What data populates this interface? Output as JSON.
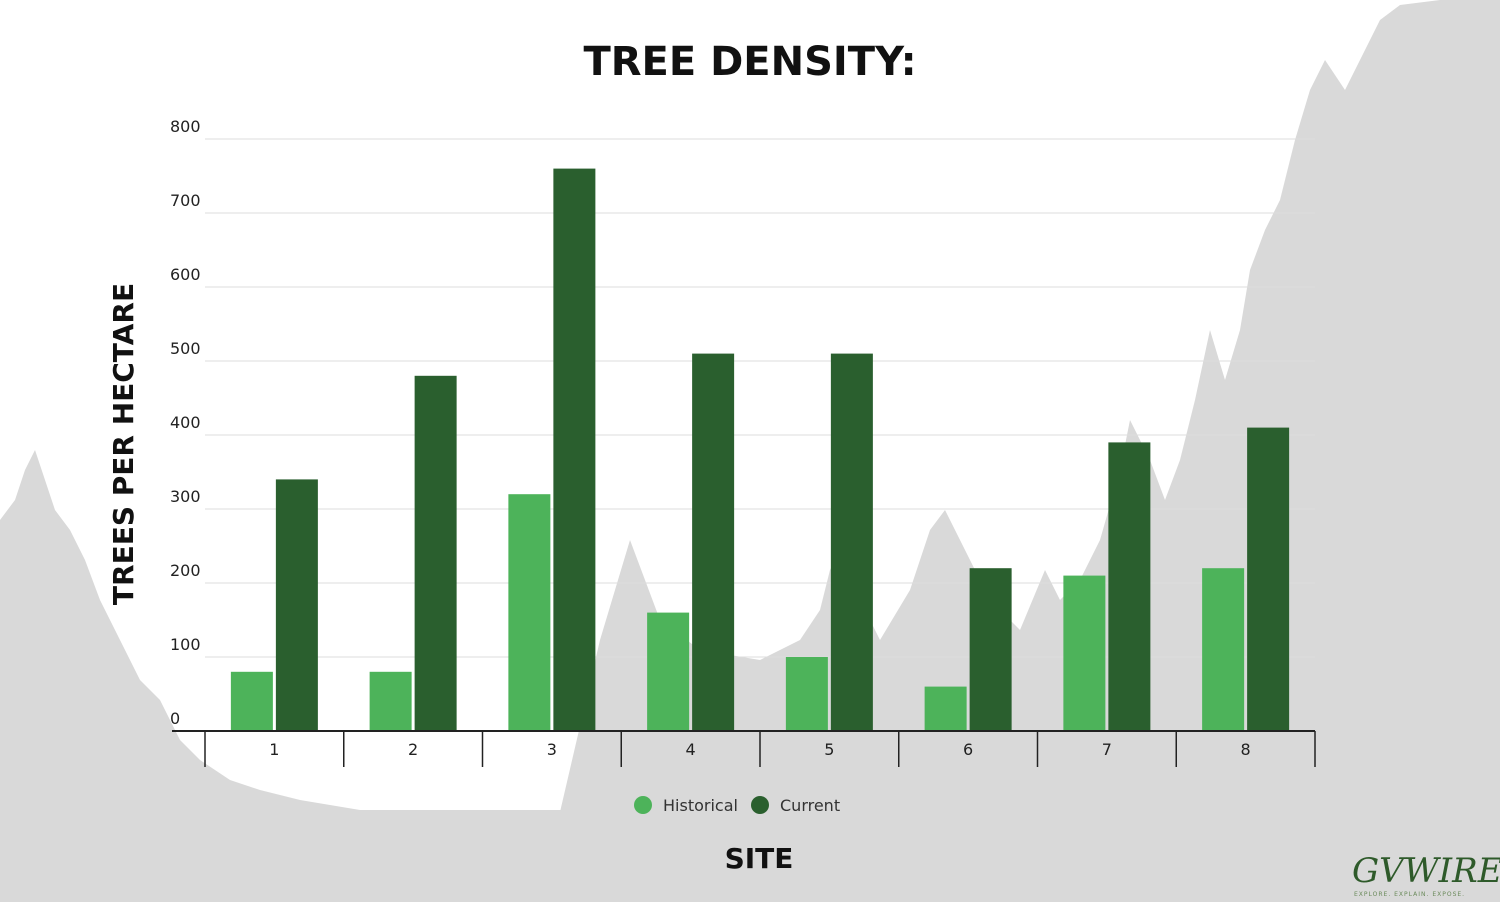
{
  "colors": {
    "historical": "#4db35a",
    "current": "#2a5f2e",
    "background_trees": "#d9d9d9",
    "grid": "#dddddd",
    "axis": "#222222"
  },
  "chart_data": {
    "type": "bar",
    "title": "TREE DENSITY:",
    "xlabel": "SITE",
    "ylabel": "TREES PER HECTARE",
    "categories": [
      "1",
      "2",
      "3",
      "4",
      "5",
      "6",
      "7",
      "8"
    ],
    "series": [
      {
        "name": "Historical",
        "values": [
          80,
          80,
          320,
          160,
          100,
          60,
          210,
          220
        ]
      },
      {
        "name": "Current",
        "values": [
          340,
          480,
          760,
          510,
          510,
          220,
          390,
          410
        ]
      }
    ],
    "ylim": [
      0,
      800
    ],
    "yticks": [
      "0",
      "100",
      "200",
      "300",
      "400",
      "500",
      "600",
      "700",
      "800"
    ],
    "grid": true,
    "legend_position": "bottom-center"
  },
  "logo": {
    "brand": "GVWIRE",
    "tagline": "EXPLORE. EXPLAIN. EXPOSE."
  }
}
